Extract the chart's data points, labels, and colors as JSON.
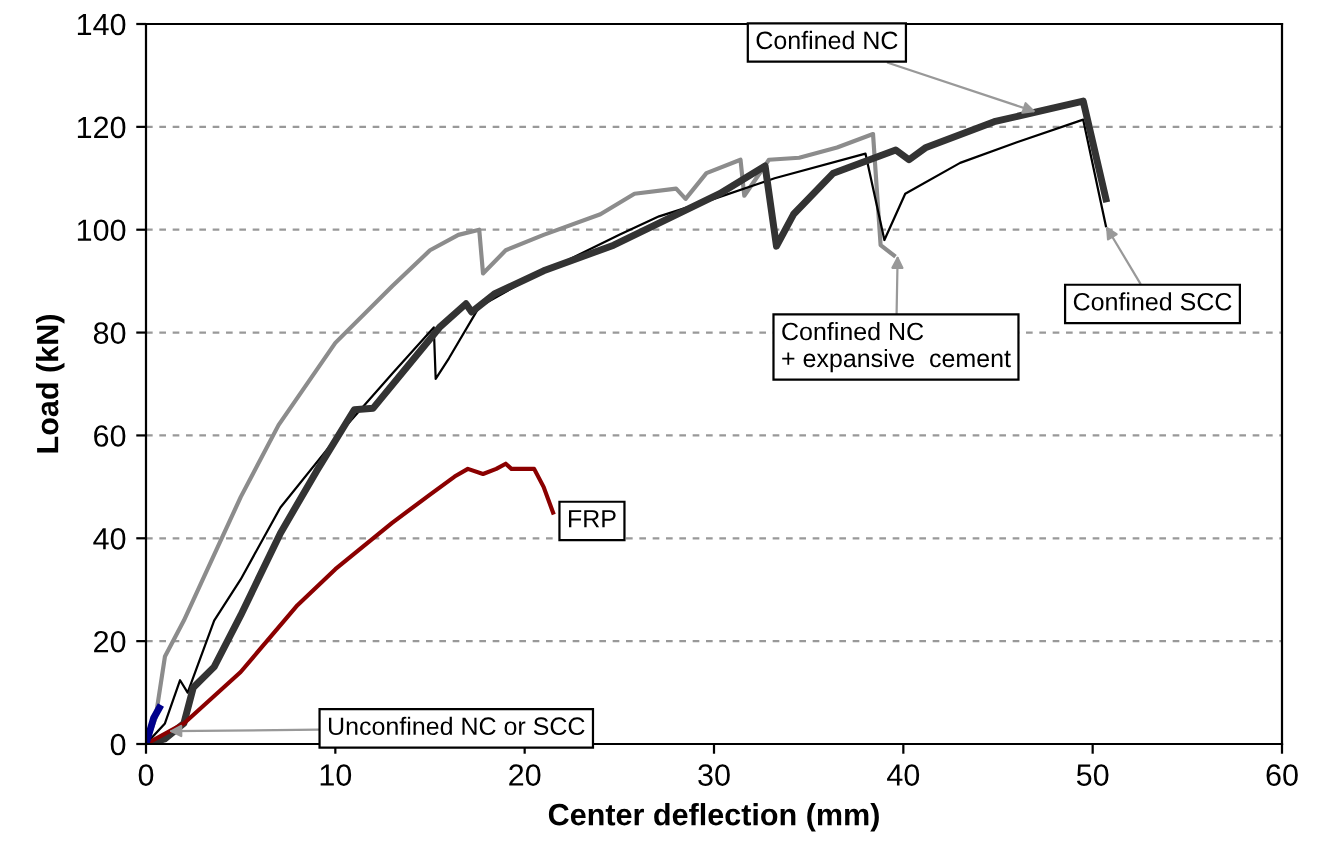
{
  "chart_data": {
    "type": "line",
    "xlabel": "Center deflection (mm)",
    "ylabel": "Load (kN)",
    "xlim": [
      0,
      60
    ],
    "xticks": [
      0,
      10,
      20,
      30,
      40,
      50,
      60
    ],
    "ylim": [
      0,
      140
    ],
    "yticks": [
      0,
      20,
      40,
      60,
      80,
      100,
      120,
      140
    ],
    "grid": "y",
    "marker": "none",
    "line_style": "solid",
    "series": [
      {
        "color": "#8c8c8c",
        "x": [
          0,
          0.5,
          1,
          2,
          3,
          5,
          7,
          10,
          13,
          15,
          16.5,
          17.6,
          17.8,
          19,
          21,
          24,
          25.8,
          28,
          28.5,
          29.6,
          31.4,
          31.6,
          32.9,
          34.5,
          36.5,
          38.4,
          38.8,
          39.5
        ],
        "values": [
          0,
          5,
          17,
          24,
          32,
          48,
          62,
          78,
          89,
          96,
          99,
          100,
          91.5,
          96,
          99,
          103,
          107,
          108,
          106,
          111,
          113.6,
          106.6,
          113.6,
          114,
          116,
          118.6,
          97,
          95
        ]
      },
      {
        "color": "#000000",
        "x": [
          0,
          1,
          1.8,
          2.2,
          3.6,
          5,
          7.1,
          10.6,
          13,
          15.2,
          15.3,
          16,
          17.6,
          20,
          25,
          27.1,
          30,
          33.2,
          38,
          39,
          40.1,
          43,
          46,
          49.5,
          50.7
        ],
        "values": [
          0,
          4,
          12.4,
          10,
          24,
          32,
          46,
          62,
          72,
          81,
          71,
          75,
          85,
          90,
          99,
          102.6,
          106,
          110,
          114.8,
          98,
          107,
          113,
          117,
          121.4,
          100.7
        ]
      },
      {
        "color": "#333333",
        "x": [
          0,
          1,
          2,
          2.5,
          3.6,
          5,
          7.1,
          9,
          11,
          12,
          15.5,
          16.9,
          17.2,
          18.4,
          21,
          24.7,
          30.3,
          32.7,
          33.3,
          34.2,
          36.3,
          39.6,
          40.3,
          41.2,
          44.8,
          49.5,
          50.7
        ],
        "values": [
          0,
          1,
          4,
          11,
          15,
          25,
          41,
          53,
          65,
          65.3,
          81,
          85.6,
          84,
          87.5,
          92,
          97,
          107,
          112.4,
          96.8,
          103,
          111,
          115.5,
          113.6,
          116,
          121,
          125,
          106
        ]
      },
      {
        "color": "#8b0000",
        "x": [
          0,
          2,
          5,
          8,
          10,
          13,
          15,
          16.3,
          17,
          17.8,
          18.5,
          19,
          19.3,
          20.5,
          21,
          21.5
        ],
        "values": [
          0,
          4,
          14,
          27,
          34,
          43,
          48.5,
          52,
          53.5,
          52.5,
          53.5,
          54.5,
          53.5,
          53.5,
          50,
          45
        ]
      },
      {
        "color": "#00008b",
        "x": [
          0,
          0.4,
          0.7
        ],
        "values": [
          0,
          5,
          7
        ]
      }
    ],
    "annotations": [
      {
        "text": "Confined NC",
        "x": 47,
        "y": 122.9
      },
      {
        "text": "Confined NC\n+ expansive  cement",
        "x": 39.7,
        "y": 95
      },
      {
        "text": "Confined SCC",
        "x": 50.7,
        "y": 100.7
      },
      {
        "text": "FRP",
        "x": 21.5,
        "y": 45
      },
      {
        "text": "Unconfined NC or SCC",
        "x": 1.2,
        "y": 2.5
      }
    ]
  }
}
